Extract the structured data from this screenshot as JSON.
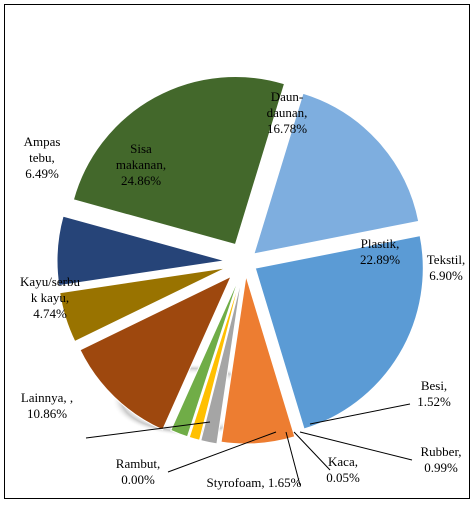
{
  "chart_data": {
    "type": "pie",
    "title": "",
    "legend": "none",
    "series": [
      {
        "values": [
          16.78,
          22.89,
          6.9,
          1.52,
          0.99,
          0.05,
          1.65,
          0.0,
          10.86,
          4.74,
          6.49,
          24.86
        ],
        "slices": [
          {
            "label_lines": [
              "Daun-",
              "daunan,",
              "16.78%"
            ],
            "value": 16.78,
            "color": "#7EAEDF"
          },
          {
            "label_lines": [
              "Plastik,",
              "22.89%"
            ],
            "value": 22.89,
            "color": "#5B9BD5"
          },
          {
            "label_lines": [
              "Tekstil,",
              "6.90%"
            ],
            "value": 6.9,
            "color": "#ED7D31"
          },
          {
            "label_lines": [
              "Besi,",
              "1.52%"
            ],
            "value": 1.52,
            "color": "#A5A5A5"
          },
          {
            "label_lines": [
              "Rubber,",
              "0.99%"
            ],
            "value": 0.99,
            "color": "#FFC000"
          },
          {
            "label_lines": [
              "Kaca,",
              "0.05%"
            ],
            "value": 0.05,
            "color": "#4472C4"
          },
          {
            "label_lines": [
              "Styrofoam, 1.65%"
            ],
            "value": 1.65,
            "color": "#70AD47"
          },
          {
            "label_lines": [
              "Rambut,",
              "0.00%"
            ],
            "value": 0.0,
            "color": "#264478"
          },
          {
            "label_lines": [
              "Lainnya, ,",
              "10.86%"
            ],
            "value": 10.86,
            "color": "#9E480E"
          },
          {
            "label_lines": [
              "Kayu/serbu",
              "k kayu,",
              "4.74%"
            ],
            "value": 4.74,
            "color": "#997300"
          },
          {
            "label_lines": [
              "Ampas",
              "tebu,",
              "6.49%"
            ],
            "value": 6.49,
            "color": "#264478"
          },
          {
            "label_lines": [
              "Sisa",
              "makanan,",
              "24.86%"
            ],
            "value": 24.86,
            "color": "#43682B"
          }
        ]
      }
    ]
  }
}
